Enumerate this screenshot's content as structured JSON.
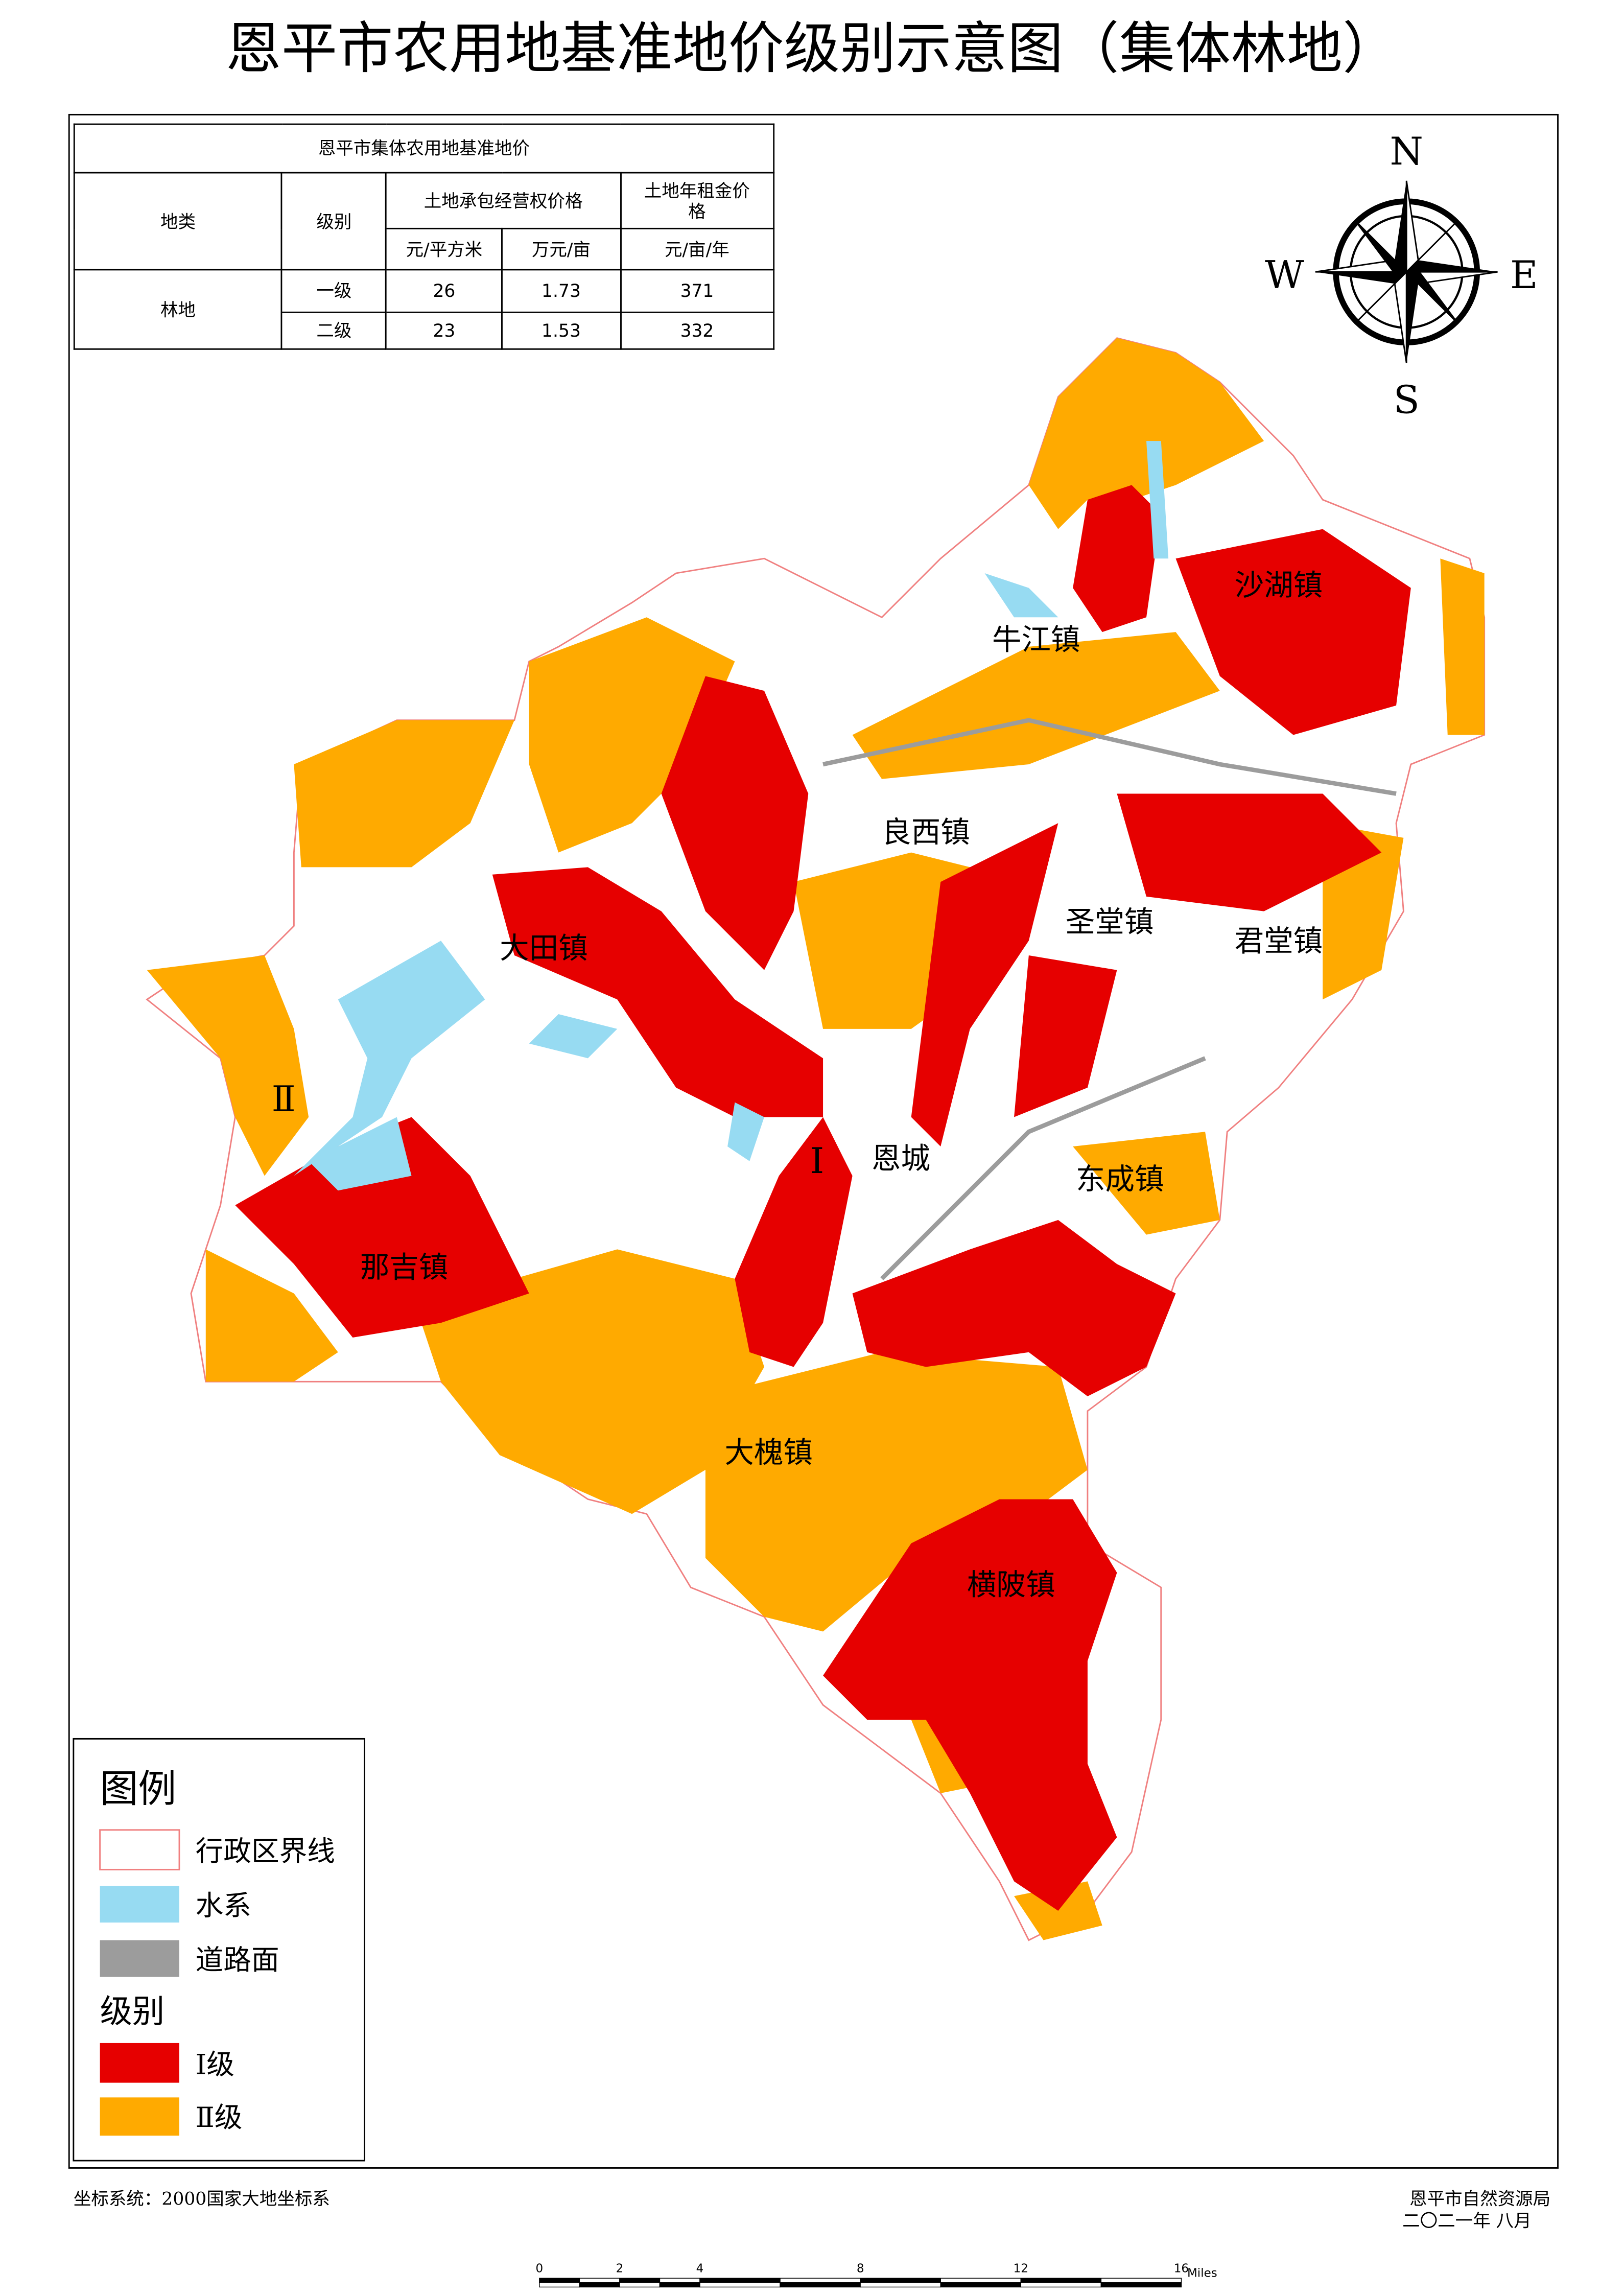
{
  "title": "恩平市农用地基准地价级别示意图（集体林地）",
  "table": {
    "caption": "恩平市集体农用地基准地价",
    "headers": [
      "地类",
      "级别",
      "土地承包经营权价格",
      "土地年租金价格"
    ],
    "units": [
      "元/平方米",
      "万元/亩",
      "元/亩/年"
    ],
    "group": "林地",
    "rows": [
      [
        "一级",
        26,
        1.73,
        371
      ],
      [
        "二级",
        23,
        1.53,
        332
      ]
    ]
  },
  "compass": {
    "n": "N",
    "s": "S",
    "e": "E",
    "w": "W"
  },
  "towns": [
    "沙湖镇",
    "牛江镇",
    "良西镇",
    "圣堂镇",
    "君堂镇",
    "大田镇",
    "恩城",
    "东成镇",
    "那吉镇",
    "大槐镇",
    "横陂镇"
  ],
  "zones": [
    "Ⅱ",
    "Ⅰ"
  ],
  "legend": {
    "title": "图例",
    "items": [
      "行政区界线",
      "水系",
      "道路面"
    ],
    "level_title": "级别",
    "levels": [
      "Ⅰ级",
      "Ⅱ级"
    ]
  },
  "footer": {
    "coordinate_system": "坐标系统：2000国家大地坐标系",
    "agency": "恩平市自然资源局",
    "date": "二〇二一年  八月"
  },
  "scale_bar": {
    "ticks": [
      0,
      2,
      4,
      8,
      12,
      16
    ],
    "unit": "Miles"
  }
}
